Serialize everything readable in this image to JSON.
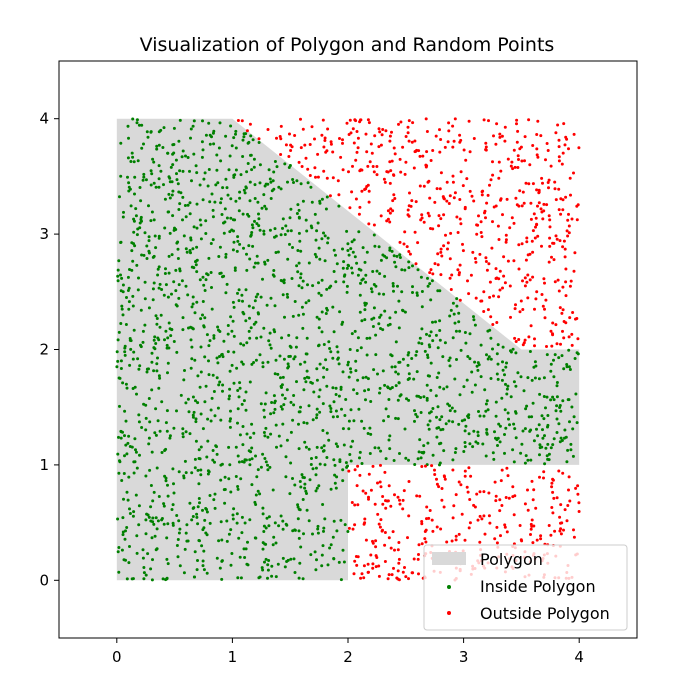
{
  "chart_data": {
    "type": "scatter",
    "title": "Visualization of Polygon and Random Points",
    "xlabel": "",
    "ylabel": "",
    "xlim": [
      -0.5,
      4.5
    ],
    "ylim": [
      -0.5,
      4.5
    ],
    "xticks": [
      0,
      1,
      2,
      3,
      4
    ],
    "yticks": [
      0,
      1,
      2,
      3,
      4
    ],
    "grid": false,
    "legend_position": "lower-right",
    "polygon": {
      "name": "Polygon",
      "color": "#d9d9d9",
      "vertices": [
        [
          0,
          0
        ],
        [
          2,
          0
        ],
        [
          2,
          1
        ],
        [
          4,
          1
        ],
        [
          4,
          2
        ],
        [
          3.5,
          2
        ],
        [
          1,
          4
        ],
        [
          0,
          4
        ]
      ]
    },
    "series": [
      {
        "name": "Inside Polygon",
        "color": "#008000",
        "count": 1900
      },
      {
        "name": "Outside Polygon",
        "color": "#ff0000",
        "count": 900
      }
    ],
    "points_domain": {
      "x": [
        0,
        4
      ],
      "y": [
        0,
        4
      ]
    }
  }
}
